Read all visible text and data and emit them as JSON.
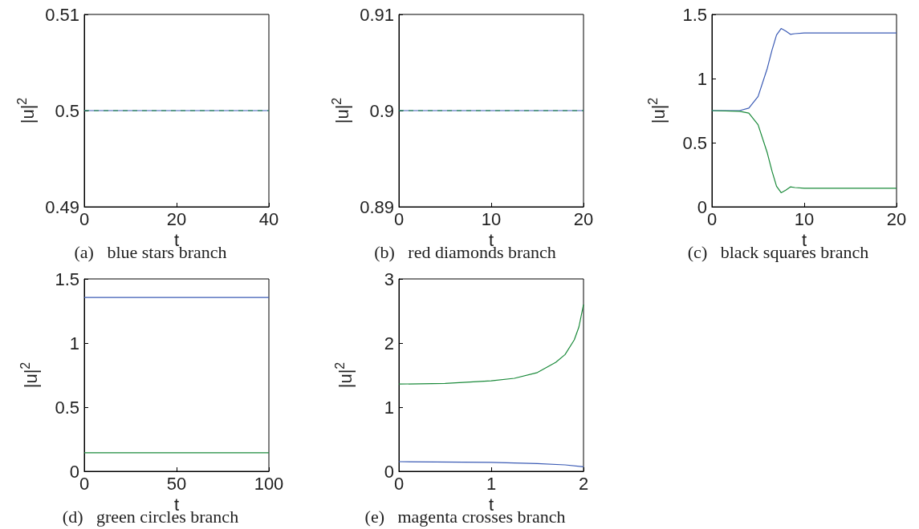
{
  "chart_data": [
    {
      "type": "line",
      "title": "(a)   blue stars branch",
      "xlabel": "t",
      "ylabel": "|u|$^{2}$",
      "xlim": [
        0,
        40
      ],
      "xticks": [
        0,
        20,
        40
      ],
      "ylim": [
        0.49,
        0.51
      ],
      "yticks": [
        0.49,
        0.5,
        0.51
      ],
      "series": [
        {
          "color": "#3b5bb5",
          "x": [
            0,
            40
          ],
          "values": [
            0.5,
            0.5
          ]
        },
        {
          "color": "#1a8a3a",
          "line_style": "dashed",
          "x": [
            0,
            40
          ],
          "values": [
            0.5,
            0.5
          ]
        }
      ]
    },
    {
      "type": "line",
      "title": "(b)   red diamonds branch",
      "xlabel": "t",
      "ylabel": "|u|$^{2}$",
      "xlim": [
        0,
        20
      ],
      "xticks": [
        0,
        10,
        20
      ],
      "ylim": [
        0.89,
        0.91
      ],
      "yticks": [
        0.89,
        0.9,
        0.91
      ],
      "series": [
        {
          "color": "#3b5bb5",
          "x": [
            0,
            20
          ],
          "values": [
            0.9,
            0.9
          ]
        },
        {
          "color": "#1a8a3a",
          "line_style": "dashed",
          "x": [
            0,
            20
          ],
          "values": [
            0.9,
            0.9
          ]
        }
      ]
    },
    {
      "type": "line",
      "title": "(c)   black squares branch",
      "xlabel": "t",
      "ylabel": "|u|$^{2}$",
      "xlim": [
        0,
        20
      ],
      "xticks": [
        0,
        10,
        20
      ],
      "ylim": [
        0,
        1.5
      ],
      "yticks": [
        0,
        0.5,
        1,
        1.5
      ],
      "series": [
        {
          "color": "#3b5bb5",
          "x": [
            0,
            3,
            4,
            5,
            6,
            6.5,
            7,
            7.5,
            8,
            8.5,
            9,
            10,
            20
          ],
          "values": [
            0.75,
            0.75,
            0.77,
            0.86,
            1.08,
            1.22,
            1.34,
            1.39,
            1.37,
            1.345,
            1.35,
            1.355,
            1.355
          ]
        },
        {
          "color": "#1a8a3a",
          "x": [
            0,
            3,
            4,
            5,
            6,
            6.5,
            7,
            7.5,
            8,
            8.5,
            9,
            10,
            20
          ],
          "values": [
            0.75,
            0.745,
            0.73,
            0.64,
            0.42,
            0.28,
            0.16,
            0.11,
            0.13,
            0.155,
            0.15,
            0.145,
            0.145
          ]
        }
      ]
    },
    {
      "type": "line",
      "title": "(d)   green circles branch",
      "xlabel": "t",
      "ylabel": "|u|$^{2}$",
      "xlim": [
        0,
        100
      ],
      "xticks": [
        0,
        50,
        100
      ],
      "ylim": [
        0,
        1.5
      ],
      "yticks": [
        0,
        0.5,
        1,
        1.5
      ],
      "series": [
        {
          "color": "#3b5bb5",
          "x": [
            0,
            100
          ],
          "values": [
            1.355,
            1.355
          ]
        },
        {
          "color": "#1a8a3a",
          "x": [
            0,
            100
          ],
          "values": [
            0.145,
            0.145
          ]
        }
      ]
    },
    {
      "type": "line",
      "title": "(e)   magenta crosses branch",
      "xlabel": "t",
      "ylabel": "|u|$^{2}$",
      "xlim": [
        0,
        2
      ],
      "xticks": [
        0,
        1,
        2
      ],
      "ylim": [
        0,
        3
      ],
      "yticks": [
        0,
        1,
        2,
        3
      ],
      "series": [
        {
          "color": "#1a8a3a",
          "x": [
            0,
            0.5,
            1,
            1.25,
            1.5,
            1.7,
            1.8,
            1.9,
            1.95,
            2
          ],
          "values": [
            1.36,
            1.37,
            1.41,
            1.45,
            1.54,
            1.7,
            1.82,
            2.05,
            2.25,
            2.6
          ]
        },
        {
          "color": "#3b5bb5",
          "x": [
            0,
            1,
            1.5,
            1.8,
            2
          ],
          "values": [
            0.15,
            0.14,
            0.12,
            0.1,
            0.07
          ]
        }
      ]
    }
  ]
}
